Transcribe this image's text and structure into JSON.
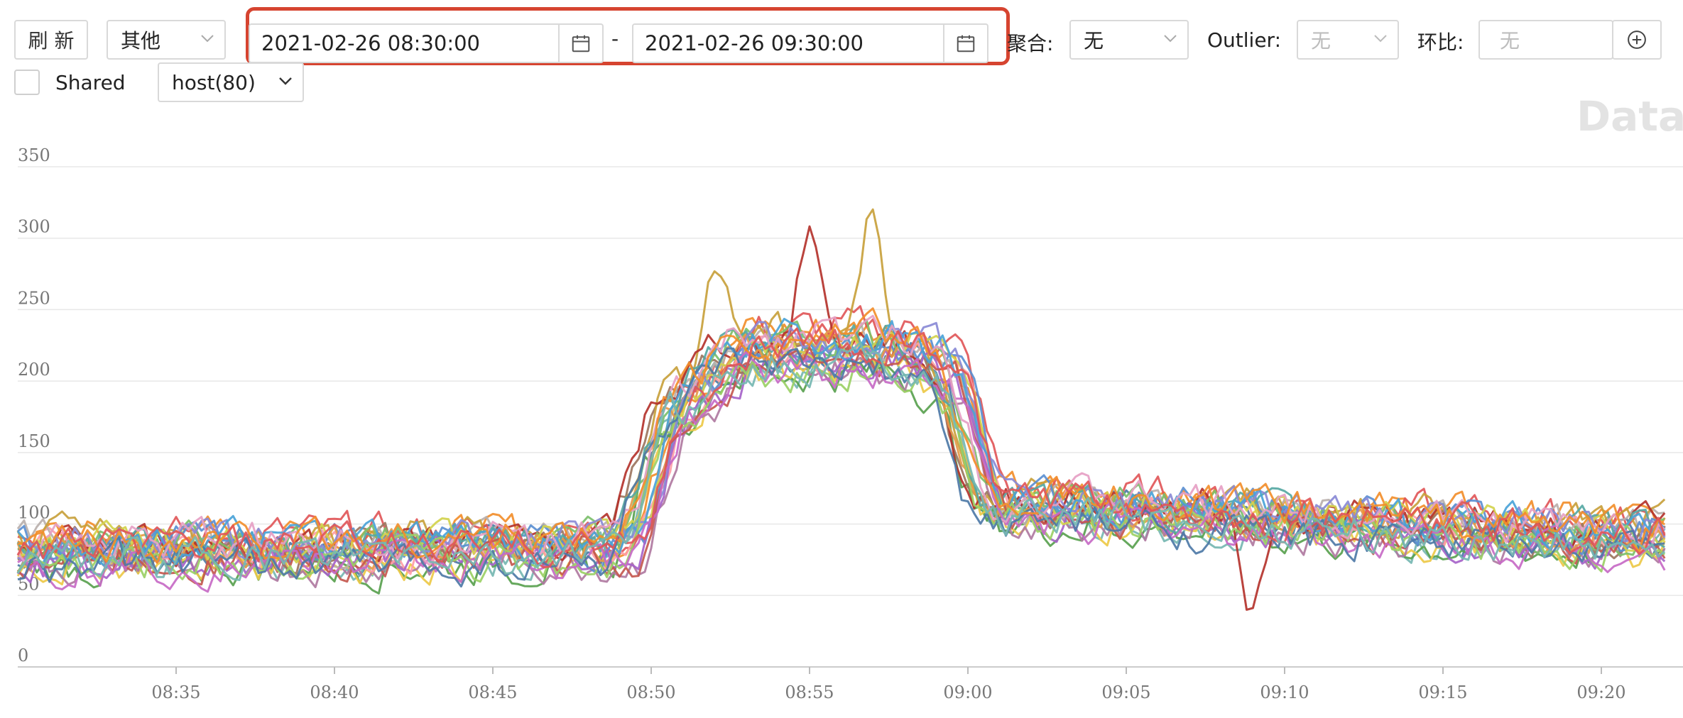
{
  "toolbar": {
    "refresh_label": "刷 新",
    "category_select": "其他",
    "date_start": "2021-02-26 08:30:00",
    "date_separator": "-",
    "date_end": "2021-02-26 09:30:00",
    "aggregate_label": "聚合:",
    "aggregate_value": "无",
    "outlier_label": "Outlier:",
    "outlier_value": "无",
    "ratio_label": "环比:",
    "ratio_placeholder": "无",
    "shared_label": "Shared",
    "host_select": "host(80)",
    "watermark": "Data s",
    "accent_color": "#d64430"
  },
  "chart_data": {
    "type": "line",
    "title": "",
    "xlabel": "",
    "ylabel": "",
    "ylim": [
      0,
      350
    ],
    "y_ticks": [
      "0",
      "50",
      "100",
      "150",
      "200",
      "250",
      "300",
      "350"
    ],
    "x_ticks": [
      "08:35",
      "08:40",
      "08:45",
      "08:50",
      "08:55",
      "09:00",
      "09:05",
      "09:10",
      "09:15",
      "09:20"
    ],
    "x_range": [
      "08:30",
      "09:22"
    ],
    "grid": true,
    "legend": "none",
    "series_count": 80,
    "series_shape": [
      {
        "x": "08:30",
        "y": 80
      },
      {
        "x": "08:49",
        "y": 82
      },
      {
        "x": "08:51",
        "y": 185
      },
      {
        "x": "08:53",
        "y": 220
      },
      {
        "x": "08:58",
        "y": 220
      },
      {
        "x": "08:59",
        "y": 210
      },
      {
        "x": "09:01",
        "y": 110
      },
      {
        "x": "09:22",
        "y": 90
      }
    ],
    "series_peaks": [
      {
        "x": "08:52",
        "y": 278
      },
      {
        "x": "08:55",
        "y": 300
      },
      {
        "x": "08:57",
        "y": 305
      },
      {
        "x": "09:09",
        "y": 136
      }
    ],
    "series_colors": [
      "#4e79a7",
      "#f28e2b",
      "#e15759",
      "#76b7b2",
      "#59a14f",
      "#edc948",
      "#b07aa1",
      "#ff9da7",
      "#9c755f",
      "#bab0ac",
      "#c8a13c",
      "#b4332d",
      "#5b8fd1",
      "#7cbf6b",
      "#a663c9",
      "#e59a4a",
      "#56a8a3",
      "#d2d24d",
      "#8a8ad6",
      "#c4584f",
      "#4aa3d8",
      "#9bd066",
      "#c76ac5",
      "#e6a0c4"
    ]
  }
}
